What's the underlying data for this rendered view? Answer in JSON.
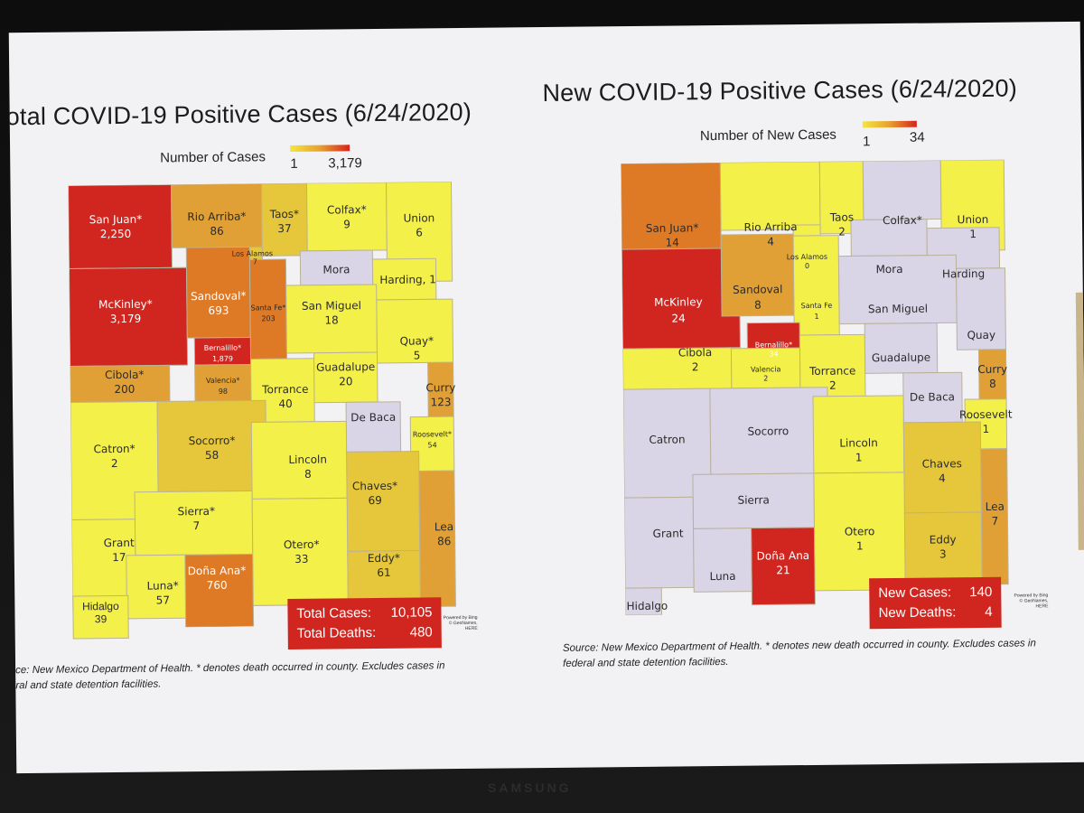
{
  "left_panel": {
    "title": "otal COVID-19 Positive Cases (6/24/2020)",
    "legend": {
      "label": "Number of Cases",
      "min": "1",
      "max": "3,179"
    },
    "counties": {
      "san_juan": {
        "name": "San Juan*",
        "value": "2,250"
      },
      "rio_arriba": {
        "name": "Rio Arriba*",
        "value": "86"
      },
      "taos": {
        "name": "Taos*",
        "value": "37"
      },
      "colfax": {
        "name": "Colfax*",
        "value": "9"
      },
      "union": {
        "name": "Union",
        "value": "6"
      },
      "los_alamos": {
        "name": "Los Alamos",
        "value": "7"
      },
      "mora": {
        "name": "Mora",
        "value": ""
      },
      "harding": {
        "name": "Harding, 1",
        "value": ""
      },
      "mckinley": {
        "name": "McKinley*",
        "value": "3,179"
      },
      "sandoval": {
        "name": "Sandoval*",
        "value": "693"
      },
      "santa_fe": {
        "name": "Santa Fe*",
        "value": "203"
      },
      "san_miguel": {
        "name": "San Miguel",
        "value": "18"
      },
      "quay": {
        "name": "Quay*",
        "value": "5"
      },
      "bernalillo": {
        "name": "Bernalillo*",
        "value": "1,879"
      },
      "cibola": {
        "name": "Cibola*",
        "value": "200"
      },
      "valencia": {
        "name": "Valencia*",
        "value": "98"
      },
      "torrance": {
        "name": "Torrance",
        "value": "40"
      },
      "guadalupe": {
        "name": "Guadalupe",
        "value": "20"
      },
      "curry": {
        "name": "Curry",
        "value": "123"
      },
      "de_baca": {
        "name": "De Baca",
        "value": ""
      },
      "roosevelt": {
        "name": "Roosevelt*",
        "value": "54"
      },
      "catron": {
        "name": "Catron*",
        "value": "2"
      },
      "socorro": {
        "name": "Socorro*",
        "value": "58"
      },
      "lincoln": {
        "name": "Lincoln",
        "value": "8"
      },
      "chaves": {
        "name": "Chaves*",
        "value": "69"
      },
      "sierra": {
        "name": "Sierra*",
        "value": "7"
      },
      "grant": {
        "name": "Grant",
        "value": "17"
      },
      "dona_ana": {
        "name": "Doña Ana*",
        "value": "760"
      },
      "otero": {
        "name": "Otero*",
        "value": "33"
      },
      "eddy": {
        "name": "Eddy*",
        "value": "61"
      },
      "lea": {
        "name": "Lea",
        "value": "86"
      },
      "luna": {
        "name": "Luna*",
        "value": "57"
      },
      "hidalgo": {
        "name": "Hidalgo",
        "value": "39"
      }
    },
    "summary": {
      "cases_label": "Total Cases:",
      "cases_value": "10,105",
      "deaths_label": "Total Deaths:",
      "deaths_value": "480"
    },
    "powered": "Powered by Bing © GeoNames, HERE",
    "source_line1": "ce: New Mexico Department of Health. * denotes death occurred in county. Excludes cases in",
    "source_line2": "ral and state detention facilities."
  },
  "right_panel": {
    "title": "New COVID-19 Positive Cases (6/24/2020)",
    "legend": {
      "label": "Number of New Cases",
      "min": "1",
      "max": "34"
    },
    "counties": {
      "san_juan": {
        "name": "San Juan*",
        "value": "14"
      },
      "rio_arriba": {
        "name": "Rio Arriba",
        "value": "4"
      },
      "taos": {
        "name": "Taos",
        "value": "2"
      },
      "colfax": {
        "name": "Colfax*",
        "value": ""
      },
      "union": {
        "name": "Union",
        "value": "1"
      },
      "los_alamos": {
        "name": "Los Alamos",
        "value": "0"
      },
      "mora": {
        "name": "Mora",
        "value": ""
      },
      "harding": {
        "name": "Harding",
        "value": ""
      },
      "mckinley": {
        "name": "McKinley",
        "value": "24"
      },
      "sandoval": {
        "name": "Sandoval",
        "value": "8"
      },
      "santa_fe": {
        "name": "Santa Fe",
        "value": "1"
      },
      "san_miguel": {
        "name": "San Miguel",
        "value": ""
      },
      "quay": {
        "name": "Quay",
        "value": ""
      },
      "bernalillo": {
        "name": "Bernalillo*",
        "value": "34"
      },
      "cibola": {
        "name": "Cibola",
        "value": "2"
      },
      "valencia": {
        "name": "Valencia",
        "value": "2"
      },
      "torrance": {
        "name": "Torrance",
        "value": "2"
      },
      "guadalupe": {
        "name": "Guadalupe",
        "value": ""
      },
      "curry": {
        "name": "Curry",
        "value": "8"
      },
      "de_baca": {
        "name": "De Baca",
        "value": ""
      },
      "roosevelt": {
        "name": "Roosevelt",
        "value": "1"
      },
      "catron": {
        "name": "Catron",
        "value": ""
      },
      "socorro": {
        "name": "Socorro",
        "value": ""
      },
      "lincoln": {
        "name": "Lincoln",
        "value": "1"
      },
      "chaves": {
        "name": "Chaves",
        "value": "4"
      },
      "sierra": {
        "name": "Sierra",
        "value": ""
      },
      "grant": {
        "name": "Grant",
        "value": ""
      },
      "dona_ana": {
        "name": "Doña Ana",
        "value": "21"
      },
      "otero": {
        "name": "Otero",
        "value": "1"
      },
      "eddy": {
        "name": "Eddy",
        "value": "3"
      },
      "lea": {
        "name": "Lea",
        "value": "7"
      },
      "luna": {
        "name": "Luna",
        "value": ""
      },
      "hidalgo": {
        "name": "Hidalgo",
        "value": ""
      }
    },
    "summary": {
      "cases_label": "New Cases:",
      "cases_value": "140",
      "deaths_label": "New Deaths:",
      "deaths_value": "4"
    },
    "powered": "Powered by Bing © GeoNames, HERE",
    "source_line1": "Source: New Mexico Department of Health. * denotes new death occurred in county. Excludes cases in",
    "source_line2": "federal and state detention facilities."
  },
  "monitor_brand": "SAMSUNG",
  "colors": {
    "high": "#d0261f",
    "orange": "#de7a26",
    "amber": "#e0a035",
    "gold": "#e6c63a",
    "yellow": "#f4f04a",
    "none": "#d9d4e6",
    "screen": "#f2f2f4"
  }
}
